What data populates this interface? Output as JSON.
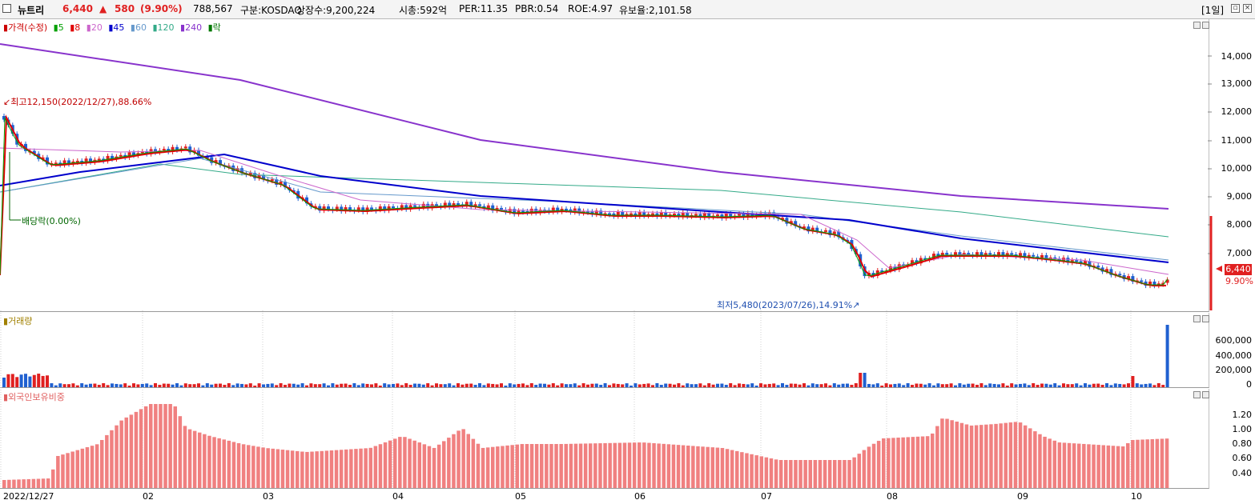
{
  "header": {
    "name": "뉴트리",
    "price": "6,440",
    "change_arrow": "▲",
    "change": "580",
    "change_pct": "(9.90%)",
    "volume": "788,567",
    "market": "구분:KOSDAQ",
    "shares": "상장수:9,200,224",
    "mcap": "시총:592억",
    "per": "PER:11.35",
    "pbr": "PBR:0.54",
    "roe": "ROE:4.97",
    "float": "유보율:2,101.58",
    "period": "[1일]"
  },
  "price_panel": {
    "legend": [
      {
        "text": "가격(수정)",
        "color": "#cc0000"
      },
      {
        "text": "5",
        "color": "#00a000"
      },
      {
        "text": "8",
        "color": "#e00000"
      },
      {
        "text": "20",
        "color": "#cc66cc"
      },
      {
        "text": "45",
        "color": "#0000cc"
      },
      {
        "text": "60",
        "color": "#6699cc"
      },
      {
        "text": "120",
        "color": "#33aa88"
      },
      {
        "text": "240",
        "color": "#8833cc"
      },
      {
        "text": "락",
        "color": "#007700"
      }
    ],
    "high_annotation": "최고12,150(2022/12/27),88.66%",
    "low_annotation": "최저5,480(2023/07/26),14.91%",
    "dividend_annotation": "배당락(0.00%)",
    "current_price_tag": "6,440",
    "current_pct_tag": "9.90%",
    "y_ticks": [
      "14,000",
      "13,000",
      "12,000",
      "11,000",
      "10,000",
      "9,000",
      "8,000",
      "7,000"
    ]
  },
  "volume_panel": {
    "legend": "거래량",
    "y_ticks": [
      "600,000",
      "400,000",
      "200,000",
      "0"
    ]
  },
  "foreign_panel": {
    "legend": "외국인보유비중",
    "y_ticks": [
      "1.20",
      "1.00",
      "0.80",
      "0.60",
      "0.40"
    ]
  },
  "x_axis": [
    "2022/12/27",
    "02",
    "03",
    "04",
    "05",
    "06",
    "07",
    "08",
    "09",
    "10"
  ],
  "colors": {
    "up": "#e02020",
    "down": "#2060d0",
    "foreign": "#f08080"
  }
}
